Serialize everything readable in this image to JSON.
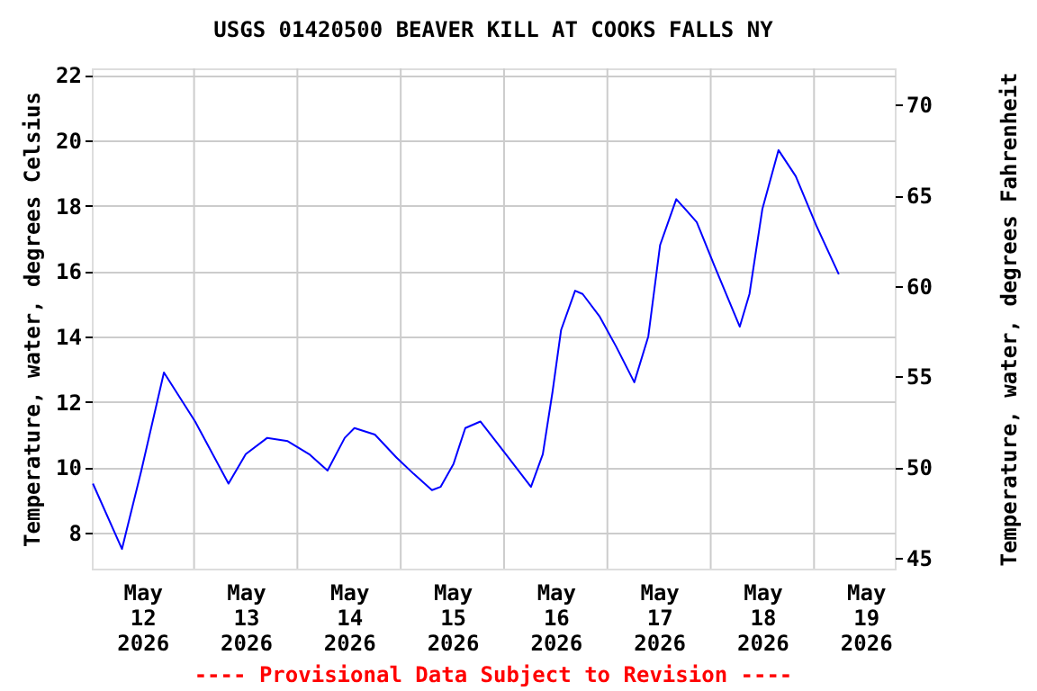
{
  "chart_data": {
    "type": "line",
    "title": "USGS 01420500 BEAVER KILL AT COOKS FALLS NY",
    "ylabel": "Temperature, water, degrees Celsius",
    "y2label": "Temperature, water, degrees Fahrenheit",
    "annotations": [
      "---- Provisional Data Subject to Revision ----"
    ],
    "x": [
      "2026-05-11T12:30",
      "2026-05-11T19:15",
      "2026-05-11T23:45",
      "2026-05-12T05:00",
      "2026-05-12T12:15",
      "2026-05-12T20:00",
      "2026-05-13T00:00",
      "2026-05-13T05:00",
      "2026-05-13T09:45",
      "2026-05-13T14:45",
      "2026-05-13T19:00",
      "2026-05-13T23:00",
      "2026-05-14T01:15",
      "2026-05-14T06:00",
      "2026-05-14T11:00",
      "2026-05-14T15:00",
      "2026-05-14T19:15",
      "2026-05-14T21:15",
      "2026-05-15T00:15",
      "2026-05-15T03:00",
      "2026-05-15T06:30",
      "2026-05-15T11:15",
      "2026-05-15T18:15",
      "2026-05-15T21:00",
      "2026-05-15T23:15",
      "2026-05-16T01:15",
      "2026-05-16T04:30",
      "2026-05-16T06:15",
      "2026-05-16T10:15",
      "2026-05-16T14:00",
      "2026-05-16T18:15",
      "2026-05-16T21:30",
      "2026-05-17T00:15",
      "2026-05-17T04:00",
      "2026-05-17T08:45",
      "2026-05-17T12:45",
      "2026-05-17T18:45",
      "2026-05-17T21:00",
      "2026-05-18T00:00",
      "2026-05-18T03:45",
      "2026-05-18T07:45",
      "2026-05-18T12:30",
      "2026-05-18T17:45"
    ],
    "series": [
      {
        "color": "#0000ff",
        "values": [
          9.5,
          7.5,
          9.9,
          12.9,
          11.4,
          9.5,
          10.4,
          10.9,
          10.8,
          10.4,
          9.9,
          10.9,
          11.2,
          11.0,
          10.3,
          9.8,
          9.3,
          9.4,
          10.1,
          11.2,
          11.4,
          10.6,
          9.4,
          10.4,
          12.3,
          14.2,
          15.4,
          15.3,
          14.6,
          13.7,
          12.6,
          14.0,
          16.8,
          18.2,
          17.5,
          16.2,
          14.3,
          15.3,
          17.9,
          19.7,
          18.9,
          17.4,
          15.9
        ]
      }
    ],
    "xlim": [
      "2026-05-11T12:15",
      "2026-05-19T06:45"
    ],
    "xticks": [
      {
        "value": "2026-05-12T00:00",
        "label": "May\n12\n2026"
      },
      {
        "value": "2026-05-13T00:00",
        "label": "May\n13\n2026"
      },
      {
        "value": "2026-05-14T00:00",
        "label": "May\n14\n2026"
      },
      {
        "value": "2026-05-15T00:00",
        "label": "May\n15\n2026"
      },
      {
        "value": "2026-05-16T00:00",
        "label": "May\n16\n2026"
      },
      {
        "value": "2026-05-17T00:00",
        "label": "May\n17\n2026"
      },
      {
        "value": "2026-05-18T00:00",
        "label": "May\n18\n2026"
      },
      {
        "value": "2026-05-19T00:00",
        "label": "May\n19\n2026"
      },
      {
        "value": "2026-05-12T12:00",
        "label": null
      },
      {
        "value": "2026-05-13T12:00",
        "label": null
      },
      {
        "value": "2026-05-14T12:00",
        "label": null
      },
      {
        "value": "2026-05-15T12:00",
        "label": null
      },
      {
        "value": "2026-05-16T12:00",
        "label": null
      },
      {
        "value": "2026-05-17T12:00",
        "label": null
      },
      {
        "value": "2026-05-18T12:00",
        "label": null
      }
    ],
    "ylim": [
      6.9,
      22.2
    ],
    "yticks": [
      8,
      10,
      12,
      14,
      16,
      18,
      20,
      22
    ],
    "y2lim": [
      44.4,
      72.0
    ],
    "y2ticks": [
      45,
      50,
      55,
      60,
      65,
      70
    ],
    "grid": true,
    "legend": false,
    "marker": "none",
    "line_style": "solid"
  }
}
